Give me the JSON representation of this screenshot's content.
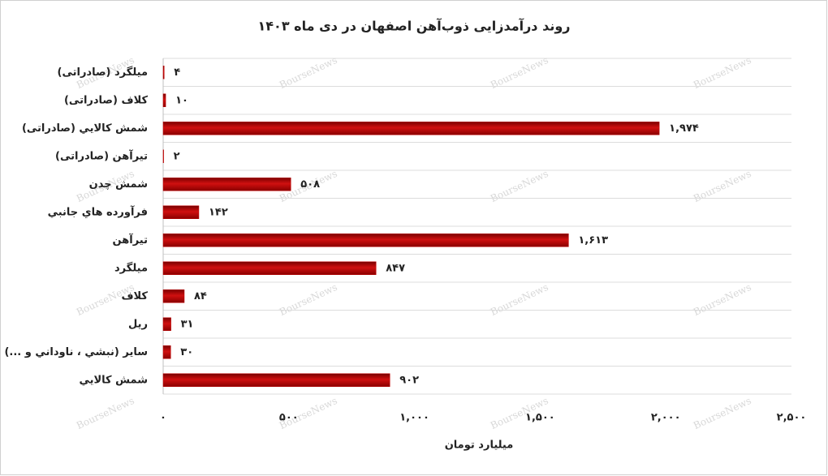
{
  "chart_data": {
    "type": "bar",
    "orientation": "horizontal",
    "title": "روند درآمدزایی ذوب‌آهن اصفهان در دی ماه ۱۴۰۳",
    "x_label": "میلیارد تومان",
    "watermark": "BourseNews",
    "categories": [
      "میلگرد (صادراتی)",
      "کلاف (صادراتی)",
      "شمش كالايي (صادراتی)",
      "تیرآهن (صادراتی)",
      "شمش چدن",
      "فرآورده هاي جانبي",
      "تیرآهن",
      "میلگرد",
      "کلاف",
      "ریل",
      "ساير (نبشي ، ناوداني و ...)",
      "شمش كالايي"
    ],
    "values": [
      4,
      10,
      1974,
      2,
      508,
      142,
      1613,
      847,
      84,
      31,
      30,
      902
    ],
    "value_labels": [
      "۴",
      "۱۰",
      "۱,۹۷۴",
      "۲",
      "۵۰۸",
      "۱۴۲",
      "۱,۶۱۳",
      "۸۴۷",
      "۸۴",
      "۳۱",
      "۳۰",
      "۹۰۲"
    ],
    "color": "#c00000",
    "xlim": [
      0,
      2500
    ],
    "xticks": [
      {
        "value": 0,
        "label": "۰"
      },
      {
        "value": 500,
        "label": "۵۰۰"
      },
      {
        "value": 1000,
        "label": "۱,۰۰۰"
      },
      {
        "value": 1500,
        "label": "۱,۵۰۰"
      },
      {
        "value": 2000,
        "label": "۲,۰۰۰"
      },
      {
        "value": 2500,
        "label": "۲,۵۰۰"
      }
    ]
  }
}
